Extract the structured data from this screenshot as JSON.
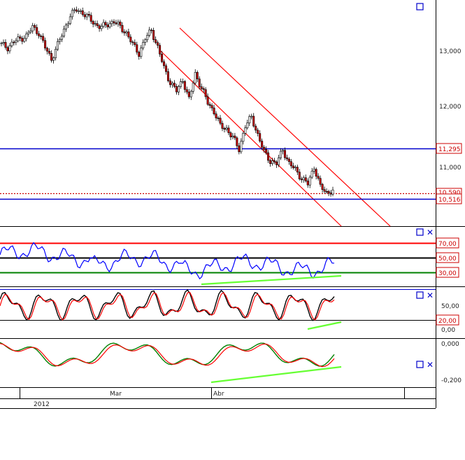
{
  "window": {
    "date_labels": [
      "Mar",
      "Abr"
    ],
    "year_label": "2012"
  },
  "panels": [
    {
      "id": "price",
      "axis_ticks": [
        "13,000",
        "12,000",
        "11,000"
      ],
      "axis_tick_values": [
        13000,
        12000,
        11000
      ],
      "price_labels": [
        {
          "text": "11,295",
          "value": 11295,
          "color": "#cc0000"
        },
        {
          "text": "10,516",
          "value": 10516,
          "color": "#cc0000"
        },
        {
          "text": "10,590",
          "value": 10590,
          "color": "#cc0000"
        }
      ],
      "horizontal_lines": [
        {
          "value": 11295,
          "color": "#0000cc",
          "style": "solid"
        },
        {
          "value": 10516,
          "color": "#0000cc",
          "style": "solid"
        },
        {
          "value": 10590,
          "color": "#cc0000",
          "style": "dotted"
        }
      ],
      "channel_color": "#ff0000"
    },
    {
      "id": "rsi",
      "axis_ticks": [
        "70,00",
        "50,00",
        "30,00"
      ],
      "levels": [
        {
          "value": 70,
          "color": "#ff0000"
        },
        {
          "value": 50,
          "color": "#000000"
        },
        {
          "value": 30,
          "color": "#008000"
        }
      ],
      "line_color": "#0000ff",
      "divergence_color": "#66ff33"
    },
    {
      "id": "stochastic",
      "axis_ticks": [
        "50,00",
        "20,00",
        "0,00"
      ],
      "levels": [
        {
          "value": 20,
          "color": "#000000"
        }
      ],
      "line_colors": [
        "#000000",
        "#ff0000"
      ],
      "divergence_color": "#66ff33"
    },
    {
      "id": "macd",
      "axis_ticks": [
        "0,000",
        "-0,200"
      ],
      "line_colors": [
        "#008000",
        "#ff0000"
      ],
      "divergence_color": "#66ff33"
    }
  ],
  "chart_data": {
    "type": "line",
    "title": "",
    "xlabel": "",
    "ylabel": "",
    "x_tick_labels": [
      "Mar",
      "Abr"
    ],
    "series": [
      {
        "values": [
          13100,
          13050,
          13150,
          13200,
          13250,
          13400,
          13300,
          13050,
          12850,
          13100,
          13350,
          13600,
          13700,
          13650,
          13550,
          13450,
          13400,
          13450,
          13500,
          13400,
          13300,
          13100,
          12950,
          13200,
          13350,
          13050,
          12700,
          12450,
          12300,
          12500,
          12150,
          12600,
          12350,
          12100,
          11950,
          11700,
          11650,
          11500,
          11300,
          11700,
          11850,
          11550,
          11250,
          11100,
          11050,
          11300,
          11050,
          10950,
          10800,
          10700,
          11000,
          10650,
          10550,
          10600
        ]
      }
    ]
  }
}
